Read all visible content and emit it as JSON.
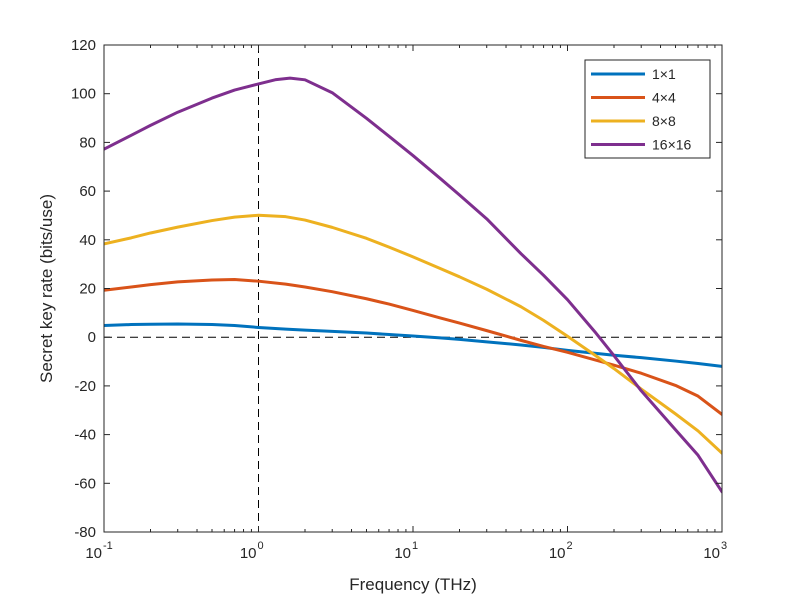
{
  "chart_data": {
    "type": "line",
    "title": "",
    "xlabel": "Frequency (THz)",
    "ylabel": "Secret key rate (bits/use)",
    "xscale": "log",
    "xlim": [
      0.1,
      1000
    ],
    "ylim": [
      -80,
      120
    ],
    "x_ticks": [
      {
        "value": 0.1,
        "base": "10",
        "exp": "-1"
      },
      {
        "value": 1,
        "base": "10",
        "exp": "0"
      },
      {
        "value": 10,
        "base": "10",
        "exp": "1"
      },
      {
        "value": 100,
        "base": "10",
        "exp": "2"
      },
      {
        "value": 1000,
        "base": "10",
        "exp": "3"
      }
    ],
    "y_ticks": [
      {
        "value": 120,
        "label": "120"
      },
      {
        "value": 100,
        "label": "100"
      },
      {
        "value": 80,
        "label": "80"
      },
      {
        "value": 60,
        "label": "60"
      },
      {
        "value": 40,
        "label": "40"
      },
      {
        "value": 20,
        "label": "20"
      },
      {
        "value": 0,
        "label": "0"
      },
      {
        "value": -20,
        "label": "-20"
      },
      {
        "value": -40,
        "label": "-40"
      },
      {
        "value": -60,
        "label": "-60"
      },
      {
        "value": -80,
        "label": "-80"
      }
    ],
    "reference_lines": [
      {
        "orientation": "horizontal",
        "value": 0,
        "style": "dashed"
      },
      {
        "orientation": "vertical",
        "value": 1,
        "style": "dashed"
      }
    ],
    "legend_position": "top-right",
    "grid": false,
    "series": [
      {
        "name": "1×1",
        "color": "#0072BD",
        "x": [
          0.1,
          0.15,
          0.2,
          0.3,
          0.5,
          0.7,
          1,
          1.5,
          2,
          3,
          5,
          7,
          10,
          15,
          20,
          30,
          50,
          70,
          100,
          150,
          200,
          300,
          500,
          700,
          1000
        ],
        "y": [
          4.8,
          5.2,
          5.3,
          5.4,
          5.2,
          4.8,
          4.0,
          3.3,
          2.9,
          2.4,
          1.7,
          1.1,
          0.5,
          -0.3,
          -0.9,
          -1.9,
          -3.2,
          -4.2,
          -5.4,
          -6.6,
          -7.4,
          -8.4,
          -9.8,
          -10.8,
          -12.0
        ]
      },
      {
        "name": "4×4",
        "color": "#D95319",
        "x": [
          0.1,
          0.15,
          0.2,
          0.3,
          0.5,
          0.7,
          1,
          1.5,
          2,
          3,
          5,
          7,
          10,
          15,
          20,
          30,
          50,
          70,
          100,
          150,
          200,
          300,
          500,
          700,
          1000
        ],
        "y": [
          19.3,
          20.6,
          21.6,
          22.7,
          23.5,
          23.7,
          23.0,
          21.8,
          20.6,
          18.7,
          15.8,
          13.6,
          11.0,
          7.9,
          5.8,
          2.7,
          -1.3,
          -3.8,
          -6.2,
          -9.3,
          -11.5,
          -14.8,
          -19.8,
          -24.2,
          -31.7
        ]
      },
      {
        "name": "8×8",
        "color": "#EDB120",
        "x": [
          0.1,
          0.15,
          0.2,
          0.3,
          0.5,
          0.7,
          1,
          1.5,
          2,
          3,
          5,
          7,
          10,
          15,
          20,
          30,
          50,
          70,
          100,
          150,
          200,
          300,
          500,
          700,
          1000
        ],
        "y": [
          38.3,
          40.8,
          42.8,
          45.2,
          47.9,
          49.3,
          50.1,
          49.5,
          48.1,
          45.1,
          40.6,
          37.0,
          33.0,
          28.2,
          24.8,
          19.7,
          12.5,
          6.9,
          0.4,
          -7.3,
          -12.9,
          -21.3,
          -31.5,
          -38.5,
          -47.6
        ]
      },
      {
        "name": "16×16",
        "color": "#7E2F8E",
        "x": [
          0.1,
          0.15,
          0.2,
          0.3,
          0.5,
          0.7,
          1,
          1.3,
          1.6,
          2,
          3,
          5,
          7,
          10,
          15,
          20,
          30,
          50,
          70,
          100,
          150,
          200,
          300,
          500,
          700,
          1000
        ],
        "y": [
          77.2,
          82.9,
          87.0,
          92.4,
          98.2,
          101.5,
          104.0,
          105.8,
          106.4,
          105.7,
          100.4,
          89.9,
          82.5,
          74.6,
          65.2,
          58.4,
          48.6,
          34.3,
          25.4,
          15.4,
          2.3,
          -7.6,
          -22.0,
          -38.0,
          -48.5,
          -63.5
        ]
      }
    ]
  }
}
